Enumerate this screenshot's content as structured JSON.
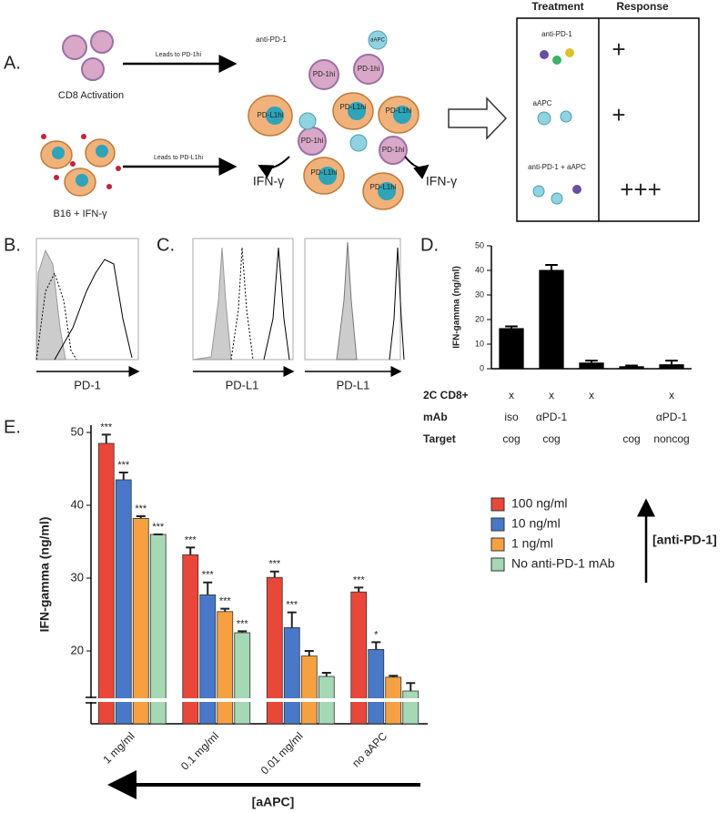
{
  "panel_a": {
    "label": "A.",
    "cd8": "CD8 Activation",
    "b16": "B16 + IFN-γ",
    "arrow_pd1": "Leads to PD-1hi",
    "arrow_pdl1": "Leads to PD-L1hi",
    "anti_pd1": "anti-PD-1",
    "aapc": "aAPC",
    "pd1_cell": "PD-1hi",
    "pdl1_cell": "PD-L1hi",
    "ifng": "IFN-γ",
    "table": {
      "headers": [
        "Treatment",
        "Response"
      ],
      "rows": [
        [
          "anti-PD-1",
          "+"
        ],
        [
          "aAPC",
          "+"
        ],
        [
          "anti-PD-1 + aAPC",
          "+++"
        ]
      ]
    }
  },
  "flow": {
    "b": {
      "label": "B.",
      "xlabel": "PD-1"
    },
    "c": {
      "label": "C.",
      "xlabels": [
        "PD-L1",
        "PD-L1"
      ]
    }
  },
  "chart_data": [
    {
      "type": "bar",
      "label": "D.",
      "ylabel": "IFN-gamma (ng/ml)",
      "categories": [
        null,
        null,
        null,
        null,
        null
      ],
      "values": [
        16.5,
        40.2,
        2.5,
        1,
        1.8
      ],
      "errors": [
        0.7,
        2,
        0.8,
        0.3,
        1.5
      ],
      "color": "#000000",
      "ylim": [
        0,
        50
      ],
      "yticks": [
        0,
        10,
        20,
        30,
        40,
        50
      ],
      "table": {
        "row_labels": [
          "2C CD8+",
          "mAb",
          "Target"
        ],
        "rows": [
          [
            "x",
            "x",
            "x",
            null,
            "x"
          ],
          [
            "iso",
            "αPD-1",
            null,
            null,
            "αPD-1"
          ],
          [
            "cog",
            "cog",
            null,
            "cog",
            "noncog"
          ]
        ]
      }
    },
    {
      "type": "grouped_bar",
      "label": "E.",
      "ylabel": "IFN-gamma (ng/ml)",
      "categories": [
        "1 mg/ml",
        "0.1 mg/ml",
        "0.01 mg/ml",
        "no aAPC"
      ],
      "series": [
        {
          "name": "100 ng/ml",
          "color": "#e8473a",
          "values": [
            48.5,
            33.2,
            30.1,
            28.1
          ],
          "errors": [
            1.2,
            1.0,
            0.8,
            0.6
          ],
          "significance": [
            "***",
            "***",
            "***",
            "***"
          ]
        },
        {
          "name": "10 ng/ml",
          "color": "#4a78c8",
          "values": [
            43.5,
            27.7,
            23.2,
            20.2
          ],
          "errors": [
            1.0,
            1.7,
            2.1,
            1.0
          ],
          "significance": [
            "***",
            "***",
            "***",
            "*"
          ]
        },
        {
          "name": "1 ng/ml",
          "color": "#f5a142",
          "values": [
            38.2,
            25.4,
            19.3,
            16.4
          ],
          "errors": [
            0.3,
            0.4,
            0.7,
            0.2
          ],
          "significance": [
            "***",
            "***",
            null,
            null
          ]
        },
        {
          "name": "No anti-PD-1 mAb",
          "color": "#a5d8b4",
          "values": [
            36.0,
            22.5,
            16.5,
            14.5
          ],
          "errors": [
            0,
            0.2,
            0.5,
            1.1
          ],
          "significance": [
            "***",
            "***",
            null,
            null
          ]
        }
      ],
      "ylim": [
        10,
        51
      ],
      "yticks": [
        20,
        30,
        40,
        50
      ],
      "legend_position": "right",
      "legend_arrow_label": "[anti-PD-1]",
      "x_arrow_label": "[aAPC]"
    }
  ]
}
